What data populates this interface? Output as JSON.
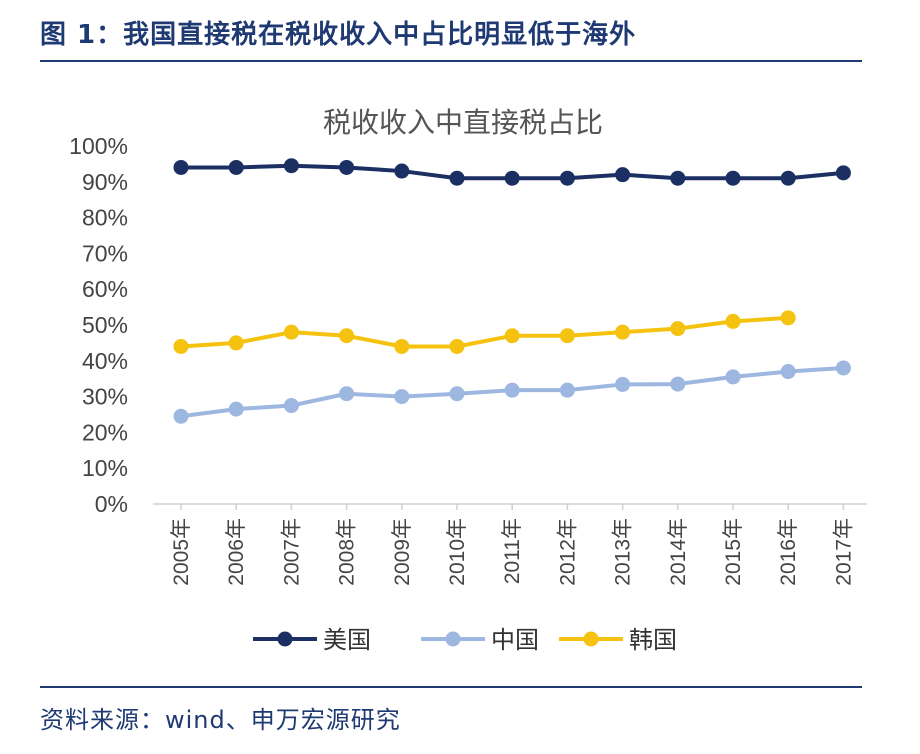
{
  "header": {
    "figure_title": "图 1：我国直接税在税收收入中占比明显低于海外"
  },
  "footer": {
    "source": "资料来源：wind、申万宏源研究"
  },
  "chart_data": {
    "type": "line",
    "title": "税收收入中直接税占比",
    "categories": [
      "2005年",
      "2006年",
      "2007年",
      "2008年",
      "2009年",
      "2010年",
      "2011年",
      "2012年",
      "2013年",
      "2014年",
      "2015年",
      "2016年",
      "2017年"
    ],
    "yticks": [
      "0%",
      "10%",
      "20%",
      "30%",
      "40%",
      "50%",
      "60%",
      "70%",
      "80%",
      "90%",
      "100%"
    ],
    "ylim": [
      0,
      100
    ],
    "grid": false,
    "legend_position": "bottom",
    "series": [
      {
        "name": "美国",
        "color": "#1b2f63",
        "values": [
          94,
          94,
          94.5,
          94,
          93,
          91,
          91,
          91,
          92,
          91,
          91,
          91,
          92.5
        ]
      },
      {
        "name": "中国",
        "color": "#9db7e0",
        "values": [
          24.5,
          26.5,
          27.5,
          30.8,
          30,
          30.8,
          31.8,
          31.8,
          33.4,
          33.5,
          35.5,
          37,
          38
        ]
      },
      {
        "name": "韩国",
        "color": "#f5c20f",
        "values": [
          44,
          45,
          48,
          47,
          44,
          44,
          47,
          47,
          48,
          49,
          51,
          52,
          null
        ]
      }
    ]
  }
}
